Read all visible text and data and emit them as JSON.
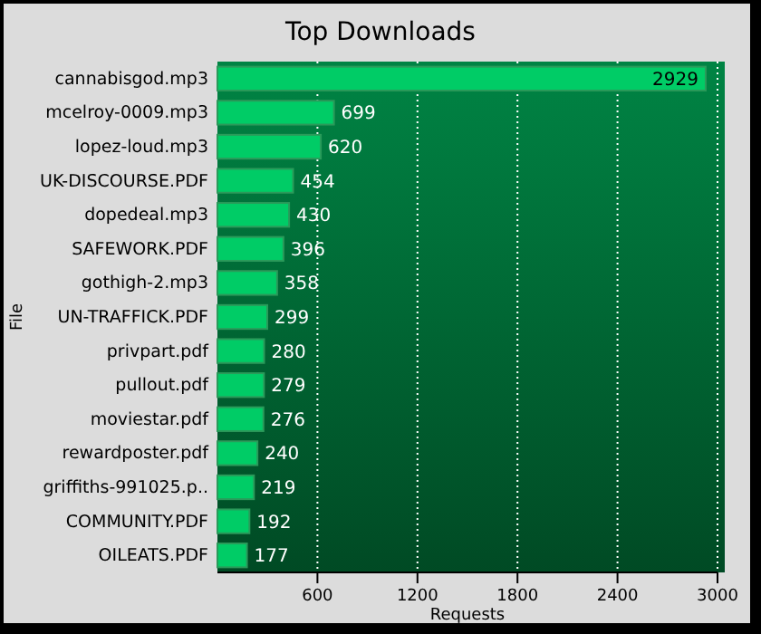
{
  "chart_data": {
    "type": "bar",
    "orientation": "horizontal",
    "title": "Top Downloads",
    "xlabel": "Requests",
    "ylabel": "File",
    "categories": [
      "cannabisgod.mp3",
      "mcelroy-0009.mp3",
      "lopez-loud.mp3",
      "UK-DISCOURSE.PDF",
      "dopedeal.mp3",
      "SAFEWORK.PDF",
      "gothigh-2.mp3",
      "UN-TRAFFICK.PDF",
      "privpart.pdf",
      "pullout.pdf",
      "moviestar.pdf",
      "rewardposter.pdf",
      "griffiths-991025.p..",
      "COMMUNITY.PDF",
      "OILEATS.PDF"
    ],
    "values": [
      2929,
      699,
      620,
      454,
      430,
      396,
      358,
      299,
      280,
      279,
      276,
      240,
      219,
      192,
      177
    ],
    "color": "#00cc66",
    "xlim": [
      0,
      3000
    ],
    "xticks": [
      600,
      1200,
      1800,
      2400,
      3000
    ],
    "grid": "x",
    "data_labels": true
  }
}
